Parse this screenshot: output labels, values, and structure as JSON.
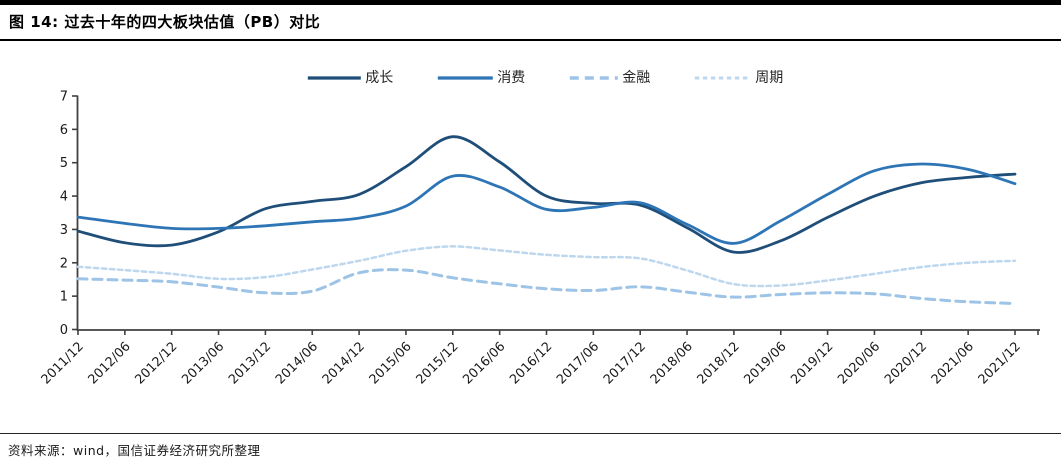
{
  "header": {
    "title": "图 14: 过去十年的四大板块估值（PB）对比"
  },
  "footer": {
    "source": "资料来源：wind，国信证券经济研究所整理"
  },
  "chart_data": {
    "type": "line",
    "title": "过去十年的四大板块估值（PB）对比",
    "xlabel": "",
    "ylabel": "",
    "ylim": [
      0,
      7
    ],
    "yticks": [
      0,
      1,
      2,
      3,
      4,
      5,
      6,
      7
    ],
    "grid": false,
    "legend_position": "top-center",
    "axis_color": "#404040",
    "label_color": "#1a1a1a",
    "categories": [
      "2011/12",
      "2012/06",
      "2012/12",
      "2013/06",
      "2013/12",
      "2014/06",
      "2014/12",
      "2015/06",
      "2015/12",
      "2016/06",
      "2016/12",
      "2017/06",
      "2017/12",
      "2018/06",
      "2018/12",
      "2019/06",
      "2019/12",
      "2020/06",
      "2020/12",
      "2021/06",
      "2021/12"
    ],
    "series": [
      {
        "name": "成长",
        "color": "#1F4E79",
        "style": "solid",
        "dash": "",
        "width": 2.8,
        "values": [
          2.95,
          2.6,
          2.53,
          2.93,
          3.62,
          3.84,
          4.05,
          4.88,
          5.78,
          5.02,
          4.0,
          3.78,
          3.73,
          3.05,
          2.32,
          2.66,
          3.36,
          4.0,
          4.4,
          4.56,
          4.66
        ]
      },
      {
        "name": "消费",
        "color": "#2E75B6",
        "style": "solid",
        "dash": "",
        "width": 2.8,
        "values": [
          3.37,
          3.18,
          3.03,
          3.03,
          3.11,
          3.23,
          3.34,
          3.7,
          4.6,
          4.27,
          3.6,
          3.66,
          3.8,
          3.15,
          2.58,
          3.26,
          4.05,
          4.76,
          4.96,
          4.8,
          4.37
        ]
      },
      {
        "name": "金融",
        "color": "#9DC3E6",
        "style": "dashed",
        "dash": "9 6",
        "width": 3,
        "values": [
          1.52,
          1.48,
          1.43,
          1.27,
          1.1,
          1.15,
          1.7,
          1.78,
          1.55,
          1.37,
          1.22,
          1.17,
          1.28,
          1.12,
          0.97,
          1.05,
          1.1,
          1.07,
          0.93,
          0.83,
          0.78
        ]
      },
      {
        "name": "周期",
        "color": "#BDD7EE",
        "style": "dashed",
        "dash": "4.5 3.5",
        "width": 2.5,
        "values": [
          1.88,
          1.78,
          1.67,
          1.52,
          1.57,
          1.8,
          2.06,
          2.36,
          2.49,
          2.37,
          2.24,
          2.17,
          2.13,
          1.77,
          1.36,
          1.32,
          1.47,
          1.67,
          1.87,
          2.0,
          2.06
        ]
      }
    ]
  }
}
